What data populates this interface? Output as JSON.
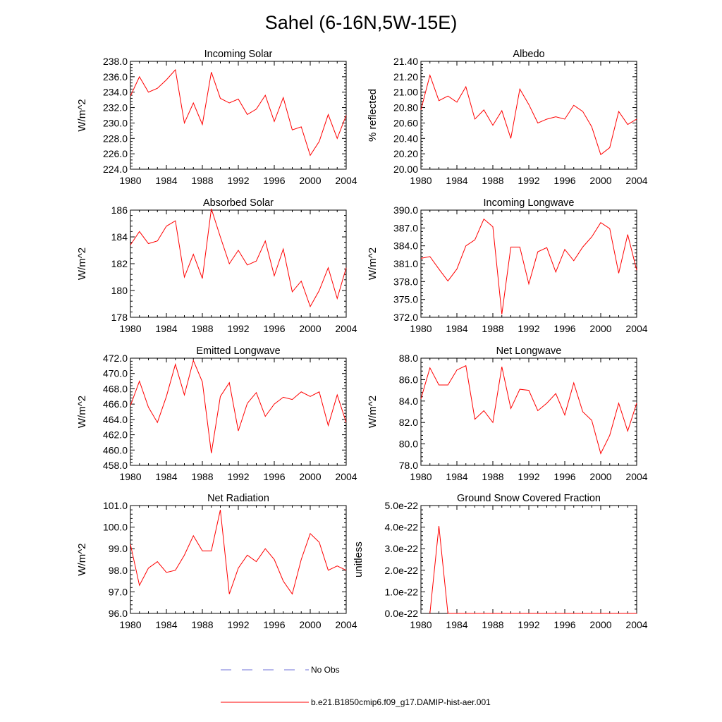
{
  "title": "Sahel (6-16N,5W-15E)",
  "legend": {
    "entries": [
      {
        "label": "No Obs",
        "color": "#0000ff",
        "style": "dashed"
      },
      {
        "label": "b.e21.B1850cmip6.f09_g17.DAMIP-hist-aer.001",
        "color": "#ff0000",
        "style": "solid"
      }
    ]
  },
  "chart_data": [
    {
      "type": "line",
      "title": "Incoming Solar",
      "ylabel": "W/m^2",
      "xlabel": "",
      "xlim": [
        1980,
        2004
      ],
      "ylim": [
        224,
        238
      ],
      "xticks": [
        "1980",
        "1984",
        "1988",
        "1992",
        "1996",
        "2000",
        "2004"
      ],
      "yticks": [
        "224.0",
        "226.0",
        "228.0",
        "230.0",
        "232.0",
        "234.0",
        "236.0",
        "238.0"
      ],
      "x": [
        1980,
        1981,
        1982,
        1983,
        1984,
        1985,
        1986,
        1987,
        1988,
        1989,
        1990,
        1991,
        1992,
        1993,
        1994,
        1995,
        1996,
        1997,
        1998,
        1999,
        2000,
        2001,
        2002,
        2003,
        2004
      ],
      "series": [
        {
          "name": "b.e21.B1850cmip6.f09_g17.DAMIP-hist-aer.001",
          "color": "#ff0000",
          "values": [
            233.5,
            236.0,
            234.0,
            234.5,
            235.6,
            236.9,
            230.0,
            232.6,
            229.8,
            236.6,
            233.2,
            232.6,
            233.1,
            231.1,
            231.8,
            233.6,
            230.2,
            233.3,
            229.1,
            229.5,
            225.8,
            227.6,
            231.1,
            228.0,
            231.0
          ]
        }
      ]
    },
    {
      "type": "line",
      "title": "Albedo",
      "ylabel": "% reflected",
      "xlabel": "",
      "xlim": [
        1980,
        2004
      ],
      "ylim": [
        20.0,
        21.4
      ],
      "xticks": [
        "1980",
        "1984",
        "1988",
        "1992",
        "1996",
        "2000",
        "2004"
      ],
      "yticks": [
        "20.00",
        "20.20",
        "20.40",
        "20.60",
        "20.80",
        "21.00",
        "21.20",
        "21.40"
      ],
      "x": [
        1980,
        1981,
        1982,
        1983,
        1984,
        1985,
        1986,
        1987,
        1988,
        1989,
        1990,
        1991,
        1992,
        1993,
        1994,
        1995,
        1996,
        1997,
        1998,
        1999,
        2000,
        2001,
        2002,
        2003,
        2004
      ],
      "series": [
        {
          "name": "b.e21.B1850cmip6.f09_g17.DAMIP-hist-aer.001",
          "color": "#ff0000",
          "values": [
            20.77,
            21.22,
            20.89,
            20.95,
            20.87,
            21.07,
            20.65,
            20.77,
            20.57,
            20.76,
            20.4,
            21.04,
            20.84,
            20.6,
            20.65,
            20.68,
            20.65,
            20.83,
            20.75,
            20.55,
            20.19,
            20.28,
            20.75,
            20.58,
            20.65
          ]
        }
      ]
    },
    {
      "type": "line",
      "title": "Absorbed Solar",
      "ylabel": "W/m^2",
      "xlabel": "",
      "xlim": [
        1980,
        2004
      ],
      "ylim": [
        178,
        186
      ],
      "xticks": [
        "1980",
        "1984",
        "1988",
        "1992",
        "1996",
        "2000",
        "2004"
      ],
      "yticks": [
        "178",
        "180",
        "182",
        "184",
        "186"
      ],
      "x": [
        1980,
        1981,
        1982,
        1983,
        1984,
        1985,
        1986,
        1987,
        1988,
        1989,
        1990,
        1991,
        1992,
        1993,
        1994,
        1995,
        1996,
        1997,
        1998,
        1999,
        2000,
        2001,
        2002,
        2003,
        2004
      ],
      "series": [
        {
          "name": "b.e21.B1850cmip6.f09_g17.DAMIP-hist-aer.001",
          "color": "#ff0000",
          "values": [
            183.4,
            184.4,
            183.5,
            183.7,
            184.8,
            185.2,
            181.0,
            182.7,
            180.9,
            186.1,
            184.0,
            182.0,
            183.0,
            181.9,
            182.2,
            183.7,
            181.1,
            183.1,
            179.9,
            180.7,
            178.8,
            180.0,
            181.7,
            179.4,
            181.7
          ]
        }
      ]
    },
    {
      "type": "line",
      "title": "Incoming Longwave",
      "ylabel": "W/m^2",
      "xlabel": "",
      "xlim": [
        1980,
        2004
      ],
      "ylim": [
        372,
        390
      ],
      "xticks": [
        "1980",
        "1984",
        "1988",
        "1992",
        "1996",
        "2000",
        "2004"
      ],
      "yticks": [
        "372.0",
        "375.0",
        "378.0",
        "381.0",
        "384.0",
        "387.0",
        "390.0"
      ],
      "x": [
        1980,
        1981,
        1982,
        1983,
        1984,
        1985,
        1986,
        1987,
        1988,
        1989,
        1990,
        1991,
        1992,
        1993,
        1994,
        1995,
        1996,
        1997,
        1998,
        1999,
        2000,
        2001,
        2002,
        2003,
        2004
      ],
      "series": [
        {
          "name": "b.e21.B1850cmip6.f09_g17.DAMIP-hist-aer.001",
          "color": "#ff0000",
          "values": [
            381.9,
            382.2,
            380.1,
            378.1,
            380.1,
            384.0,
            385.0,
            388.5,
            387.2,
            372.5,
            383.8,
            383.8,
            377.6,
            383.0,
            383.7,
            379.6,
            383.4,
            381.5,
            383.8,
            385.5,
            387.9,
            386.9,
            379.4,
            385.9,
            379.9
          ]
        }
      ]
    },
    {
      "type": "line",
      "title": "Emitted Longwave",
      "ylabel": "W/m^2",
      "xlabel": "",
      "xlim": [
        1980,
        2004
      ],
      "ylim": [
        458,
        472
      ],
      "xticks": [
        "1980",
        "1984",
        "1988",
        "1992",
        "1996",
        "2000",
        "2004"
      ],
      "yticks": [
        "458.0",
        "460.0",
        "462.0",
        "464.0",
        "466.0",
        "468.0",
        "470.0",
        "472.0"
      ],
      "x": [
        1980,
        1981,
        1982,
        1983,
        1984,
        1985,
        1986,
        1987,
        1988,
        1989,
        1990,
        1991,
        1992,
        1993,
        1994,
        1995,
        1996,
        1997,
        1998,
        1999,
        2000,
        2001,
        2002,
        2003,
        2004
      ],
      "series": [
        {
          "name": "b.e21.B1850cmip6.f09_g17.DAMIP-hist-aer.001",
          "color": "#ff0000",
          "values": [
            465.8,
            469.0,
            465.6,
            463.6,
            467.0,
            471.2,
            467.2,
            471.7,
            468.9,
            459.6,
            467.0,
            468.8,
            462.5,
            466.1,
            467.5,
            464.4,
            466.0,
            466.9,
            466.6,
            467.6,
            467.0,
            467.6,
            463.2,
            467.2,
            463.6
          ]
        }
      ]
    },
    {
      "type": "line",
      "title": "Net Longwave",
      "ylabel": "W/m^2",
      "xlabel": "",
      "xlim": [
        1980,
        2004
      ],
      "ylim": [
        78,
        88
      ],
      "xticks": [
        "1980",
        "1984",
        "1988",
        "1992",
        "1996",
        "2000",
        "2004"
      ],
      "yticks": [
        "78.0",
        "80.0",
        "82.0",
        "84.0",
        "86.0",
        "88.0"
      ],
      "x": [
        1980,
        1981,
        1982,
        1983,
        1984,
        1985,
        1986,
        1987,
        1988,
        1989,
        1990,
        1991,
        1992,
        1993,
        1994,
        1995,
        1996,
        1997,
        1998,
        1999,
        2000,
        2001,
        2002,
        2003,
        2004
      ],
      "series": [
        {
          "name": "b.e21.B1850cmip6.f09_g17.DAMIP-hist-aer.001",
          "color": "#ff0000",
          "values": [
            84.2,
            87.1,
            85.5,
            85.5,
            86.9,
            87.3,
            82.3,
            83.1,
            82.0,
            87.2,
            83.3,
            85.1,
            85.0,
            83.1,
            83.8,
            84.7,
            82.7,
            85.7,
            83.0,
            82.2,
            79.1,
            80.8,
            83.8,
            81.2,
            83.8
          ]
        }
      ]
    },
    {
      "type": "line",
      "title": "Net Radiation",
      "ylabel": "W/m^2",
      "xlabel": "",
      "xlim": [
        1980,
        2004
      ],
      "ylim": [
        96,
        101
      ],
      "xticks": [
        "1980",
        "1984",
        "1988",
        "1992",
        "1996",
        "2000",
        "2004"
      ],
      "yticks": [
        "96.0",
        "97.0",
        "98.0",
        "99.0",
        "100.0",
        "101.0"
      ],
      "x": [
        1980,
        1981,
        1982,
        1983,
        1984,
        1985,
        1986,
        1987,
        1988,
        1989,
        1990,
        1991,
        1992,
        1993,
        1994,
        1995,
        1996,
        1997,
        1998,
        1999,
        2000,
        2001,
        2002,
        2003,
        2004
      ],
      "series": [
        {
          "name": "b.e21.B1850cmip6.f09_g17.DAMIP-hist-aer.001",
          "color": "#ff0000",
          "values": [
            99.2,
            97.3,
            98.1,
            98.4,
            97.9,
            98.0,
            98.7,
            99.6,
            98.9,
            98.9,
            100.8,
            96.9,
            98.1,
            98.7,
            98.4,
            99.0,
            98.5,
            97.5,
            96.9,
            98.5,
            99.7,
            99.3,
            98.0,
            98.2,
            98.0
          ]
        }
      ]
    },
    {
      "type": "line",
      "title": "Ground Snow Covered Fraction",
      "ylabel": "unitless",
      "xlabel": "",
      "xlim": [
        1980,
        2004
      ],
      "ylim": [
        0,
        5e-22
      ],
      "xticks": [
        "1980",
        "1984",
        "1988",
        "1992",
        "1996",
        "2000",
        "2004"
      ],
      "yticks": [
        "0.0e-22",
        "1.0e-22",
        "2.0e-22",
        "3.0e-22",
        "4.0e-22",
        "5.0e-22"
      ],
      "x": [
        1981,
        1982,
        1983,
        1984,
        1985,
        1986,
        1987,
        1988,
        1989,
        1990,
        1991,
        1992,
        1993,
        1994,
        1995,
        1996,
        1997,
        1998,
        1999,
        2000,
        2001,
        2002,
        2003,
        2004
      ],
      "series": [
        {
          "name": "b.e21.B1850cmip6.f09_g17.DAMIP-hist-aer.001",
          "color": "#ff0000",
          "values": [
            0,
            4.05e-22,
            0,
            0,
            0,
            0,
            0,
            0,
            0,
            0,
            0,
            0,
            0,
            0,
            0,
            0,
            0,
            0,
            0,
            0,
            0,
            0,
            0,
            0
          ]
        }
      ]
    }
  ]
}
